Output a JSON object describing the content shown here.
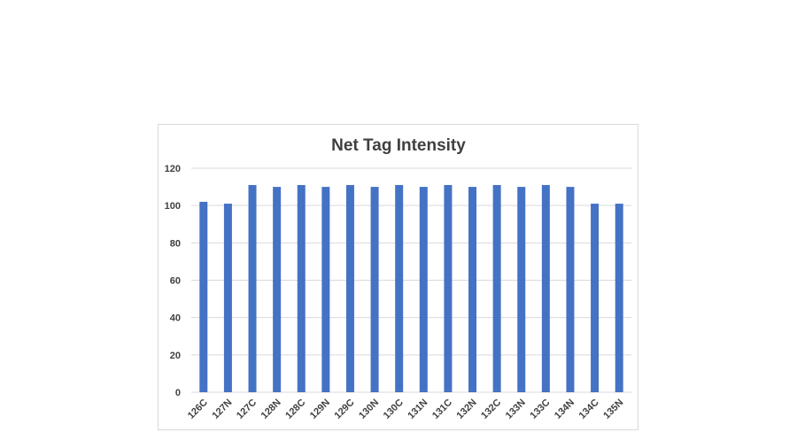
{
  "chart_data": {
    "type": "bar",
    "title": "Net Tag Intensity",
    "xlabel": "",
    "ylabel": "",
    "categories": [
      "126C",
      "127N",
      "127C",
      "128N",
      "128C",
      "129N",
      "129C",
      "130N",
      "130C",
      "131N",
      "131C",
      "132N",
      "132C",
      "133N",
      "133C",
      "134N",
      "134C",
      "135N"
    ],
    "values": [
      102,
      101,
      111,
      110,
      111,
      110,
      111,
      110,
      111,
      110,
      111,
      110,
      111,
      110,
      111,
      110,
      101,
      101
    ],
    "ylim": [
      0,
      120
    ],
    "yticks": [
      0,
      20,
      40,
      60,
      80,
      100,
      120
    ],
    "grid": true,
    "legend": "none",
    "bar_color": "#4472c4"
  }
}
